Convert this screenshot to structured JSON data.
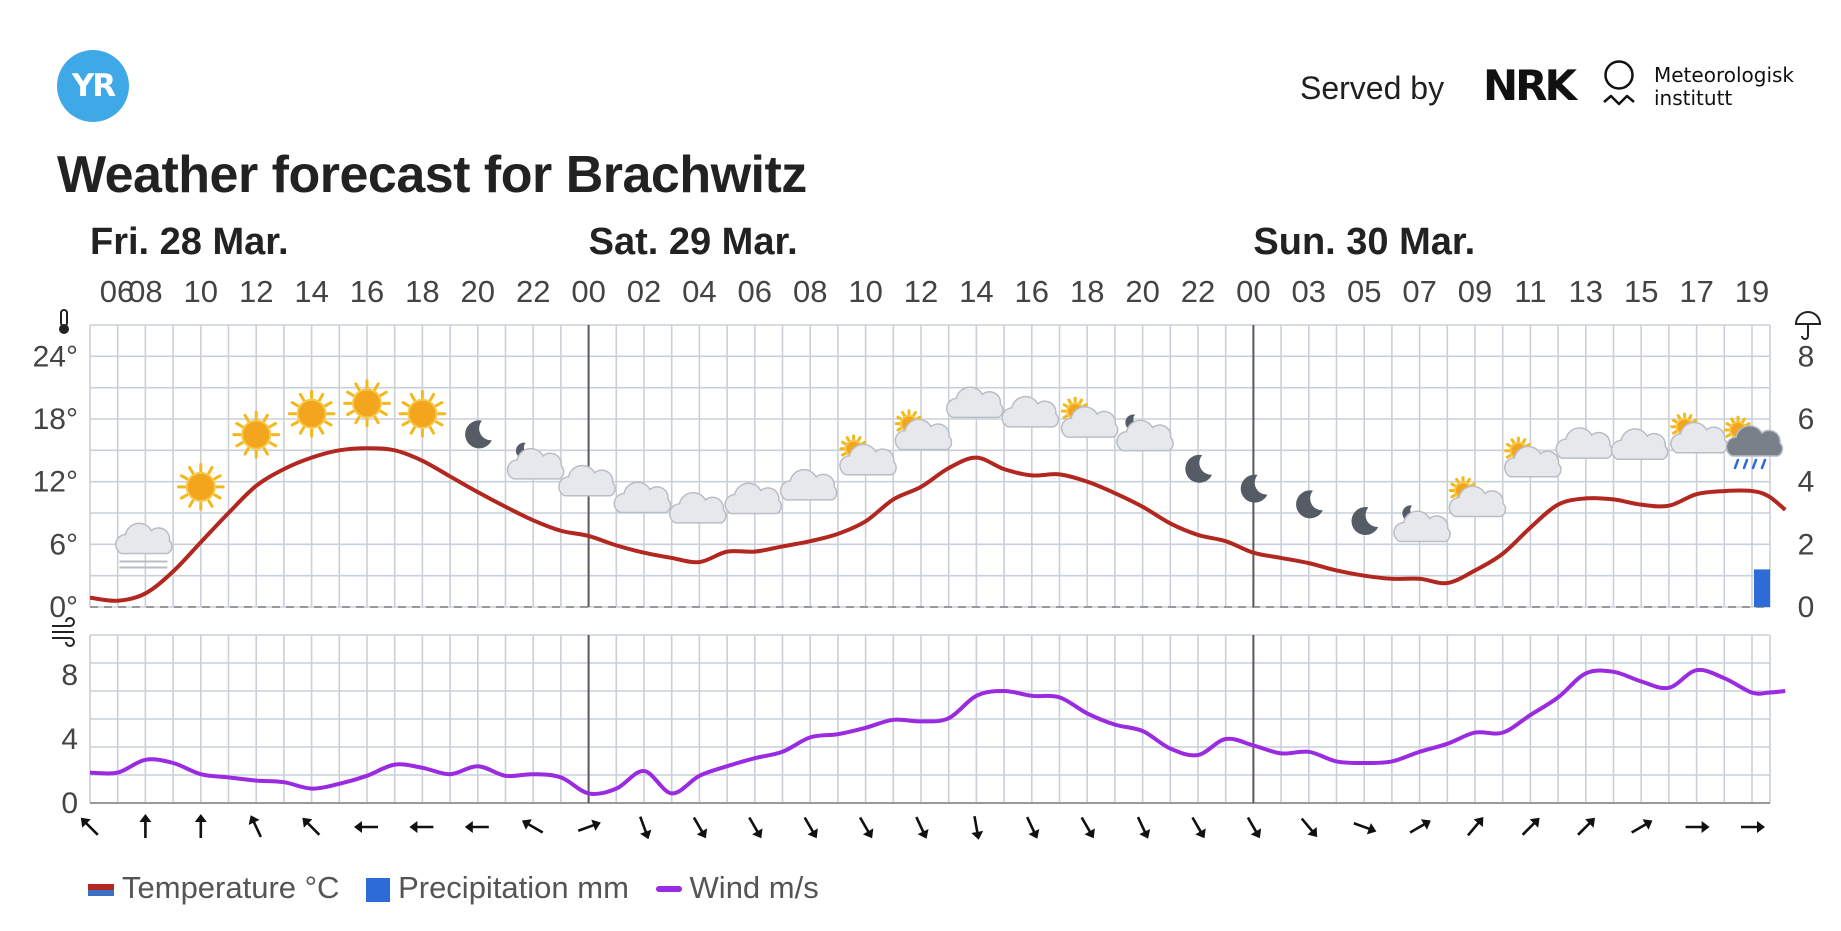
{
  "header": {
    "logo_text": "YR",
    "served_by_label": "Served by",
    "nrk_logo_text": "NRK",
    "met_name_line1": "Meteorologisk",
    "met_name_line2": "institutt",
    "title": "Weather forecast for Brachwitz"
  },
  "legend": {
    "temperature": "Temperature °C",
    "precipitation": "Precipitation mm",
    "wind": "Wind m/s"
  },
  "colors": {
    "temperature": "#b2271f",
    "temperature_cold": "#3a6fc4",
    "precipitation": "#2d6bd6",
    "wind": "#9a2be0",
    "grid": "#c9d0d8",
    "day_divider": "#5a5a5a"
  },
  "chart_data": {
    "type": "line",
    "days": [
      {
        "label": "Fri. 28 Mar.",
        "start_index": 0
      },
      {
        "label": "Sat. 29 Mar.",
        "start_index": 9
      },
      {
        "label": "Sun. 30 Mar.",
        "start_index": 21
      }
    ],
    "hour_labels": [
      "06",
      "08",
      "10",
      "12",
      "14",
      "16",
      "18",
      "20",
      "22",
      "00",
      "02",
      "04",
      "06",
      "08",
      "10",
      "12",
      "14",
      "16",
      "18",
      "20",
      "22",
      "00",
      "03",
      "05",
      "07",
      "09",
      "11",
      "13",
      "15",
      "17",
      "19"
    ],
    "temperature": {
      "unit": "°C",
      "y_ticks": [
        "0°",
        "6°",
        "12°",
        "18°",
        "24°"
      ],
      "ylim": [
        0,
        27
      ],
      "x": [
        0,
        0.5,
        1,
        1.5,
        2,
        2.5,
        3,
        3.5,
        4,
        4.5,
        5,
        5.5,
        6,
        6.5,
        7,
        7.5,
        8,
        8.5,
        9,
        9.5,
        10,
        10.5,
        11,
        11.5,
        12,
        12.5,
        13,
        13.5,
        14,
        14.5,
        15,
        15.5,
        16,
        16.5,
        17,
        17.5,
        18,
        18.5,
        19,
        19.5,
        20,
        20.5,
        21,
        21.5,
        22,
        22.5,
        23,
        23.5,
        24,
        24.5,
        25,
        25.5,
        26,
        26.5,
        27,
        27.5,
        28,
        28.5,
        29,
        29.5,
        30,
        30.3,
        30.6
      ],
      "values": [
        0.9,
        0.6,
        1.3,
        3.4,
        6.2,
        9.0,
        11.6,
        13.2,
        14.3,
        15.0,
        15.2,
        15.0,
        14.0,
        12.5,
        11.0,
        9.6,
        8.3,
        7.3,
        6.8,
        5.9,
        5.2,
        4.7,
        4.3,
        5.3,
        5.3,
        5.8,
        6.3,
        7.0,
        8.2,
        10.3,
        11.5,
        13.3,
        14.3,
        13.2,
        12.6,
        12.7,
        12.0,
        10.9,
        9.6,
        8.0,
        6.9,
        6.3,
        5.2,
        4.7,
        4.2,
        3.5,
        3.0,
        2.7,
        2.7,
        2.3,
        3.5,
        5.1,
        7.6,
        9.8,
        10.4,
        10.3,
        9.8,
        9.7,
        10.8,
        11.1,
        11.1,
        10.6,
        9.3
      ],
      "series_name": "Temperature °C"
    },
    "precipitation": {
      "unit": "mm",
      "y_ticks": [
        "0",
        "2",
        "4",
        "6",
        "8"
      ],
      "ylim": [
        0,
        9
      ],
      "bars": [
        {
          "x_start": 30,
          "x_end": 30.5,
          "value": 1.2
        }
      ],
      "series_name": "Precipitation mm"
    },
    "wind": {
      "unit": "m/s",
      "y_ticks": [
        "0",
        "4",
        "8"
      ],
      "ylim": [
        0,
        10.5
      ],
      "x": [
        0,
        0.5,
        1,
        1.5,
        2,
        2.5,
        3,
        3.5,
        4,
        4.5,
        5,
        5.5,
        6,
        6.5,
        7,
        7.5,
        8,
        8.5,
        9,
        9.5,
        10,
        10.5,
        11,
        11.5,
        12,
        12.5,
        13,
        13.5,
        14,
        14.5,
        15,
        15.5,
        16,
        16.5,
        17,
        17.5,
        18,
        18.5,
        19,
        19.5,
        20,
        20.5,
        21,
        21.5,
        22,
        22.5,
        23,
        23.5,
        24,
        24.5,
        25,
        25.5,
        26,
        26.5,
        27,
        27.5,
        28,
        28.5,
        29,
        29.5,
        30,
        30.3,
        30.6
      ],
      "values": [
        1.9,
        1.9,
        2.7,
        2.5,
        1.8,
        1.6,
        1.4,
        1.3,
        0.9,
        1.2,
        1.7,
        2.4,
        2.2,
        1.8,
        2.3,
        1.7,
        1.8,
        1.6,
        0.6,
        0.9,
        2.0,
        0.6,
        1.7,
        2.3,
        2.8,
        3.2,
        4.1,
        4.3,
        4.7,
        5.2,
        5.1,
        5.3,
        6.7,
        7.0,
        6.7,
        6.6,
        5.6,
        4.9,
        4.5,
        3.4,
        3.0,
        4.0,
        3.6,
        3.1,
        3.2,
        2.6,
        2.5,
        2.6,
        3.2,
        3.7,
        4.4,
        4.4,
        5.5,
        6.6,
        8.1,
        8.2,
        7.6,
        7.2,
        8.3,
        7.8,
        6.9,
        6.9,
        7.0
      ],
      "series_name": "Wind m/s"
    },
    "weather_symbols": [
      {
        "x": 1,
        "temp": 5.5,
        "icon": "fog"
      },
      {
        "x": 2,
        "temp": 11.5,
        "icon": "sun"
      },
      {
        "x": 3,
        "temp": 16.5,
        "icon": "sun"
      },
      {
        "x": 4,
        "temp": 18.5,
        "icon": "sun"
      },
      {
        "x": 5,
        "temp": 19.5,
        "icon": "sun"
      },
      {
        "x": 6,
        "temp": 18.5,
        "icon": "sun"
      },
      {
        "x": 7,
        "temp": 16.5,
        "icon": "moon"
      },
      {
        "x": 8,
        "temp": 13.8,
        "icon": "partly-cloudy-night"
      },
      {
        "x": 9,
        "temp": 11.8,
        "icon": "cloud"
      },
      {
        "x": 10,
        "temp": 10.2,
        "icon": "cloud"
      },
      {
        "x": 11,
        "temp": 9.2,
        "icon": "cloud"
      },
      {
        "x": 12,
        "temp": 10.1,
        "icon": "cloud"
      },
      {
        "x": 13,
        "temp": 11.4,
        "icon": "cloud"
      },
      {
        "x": 14,
        "temp": 14.2,
        "icon": "partly-cloudy-day"
      },
      {
        "x": 15,
        "temp": 16.6,
        "icon": "partly-cloudy-day"
      },
      {
        "x": 16,
        "temp": 19.3,
        "icon": "cloud"
      },
      {
        "x": 17,
        "temp": 18.4,
        "icon": "cloud"
      },
      {
        "x": 18,
        "temp": 17.8,
        "icon": "partly-cloudy-day"
      },
      {
        "x": 19,
        "temp": 16.5,
        "icon": "partly-cloudy-night"
      },
      {
        "x": 20,
        "temp": 13.2,
        "icon": "moon"
      },
      {
        "x": 21,
        "temp": 11.3,
        "icon": "moon"
      },
      {
        "x": 22,
        "temp": 9.8,
        "icon": "moon"
      },
      {
        "x": 23,
        "temp": 8.2,
        "icon": "moon"
      },
      {
        "x": 24,
        "temp": 7.8,
        "icon": "partly-cloudy-night"
      },
      {
        "x": 25,
        "temp": 10.2,
        "icon": "partly-cloudy-day"
      },
      {
        "x": 26,
        "temp": 14.0,
        "icon": "partly-cloudy-day"
      },
      {
        "x": 27,
        "temp": 15.4,
        "icon": "cloud"
      },
      {
        "x": 28,
        "temp": 15.3,
        "icon": "cloud"
      },
      {
        "x": 29,
        "temp": 16.3,
        "icon": "partly-cloudy-day"
      },
      {
        "x": 30,
        "temp": 15.8,
        "icon": "rain-partly-cloudy"
      }
    ],
    "wind_direction_deg": [
      315,
      0,
      0,
      335,
      315,
      270,
      270,
      270,
      300,
      70,
      160,
      150,
      150,
      150,
      150,
      155,
      170,
      155,
      150,
      155,
      150,
      150,
      140,
      110,
      60,
      40,
      45,
      45,
      60,
      90,
      90
    ]
  }
}
